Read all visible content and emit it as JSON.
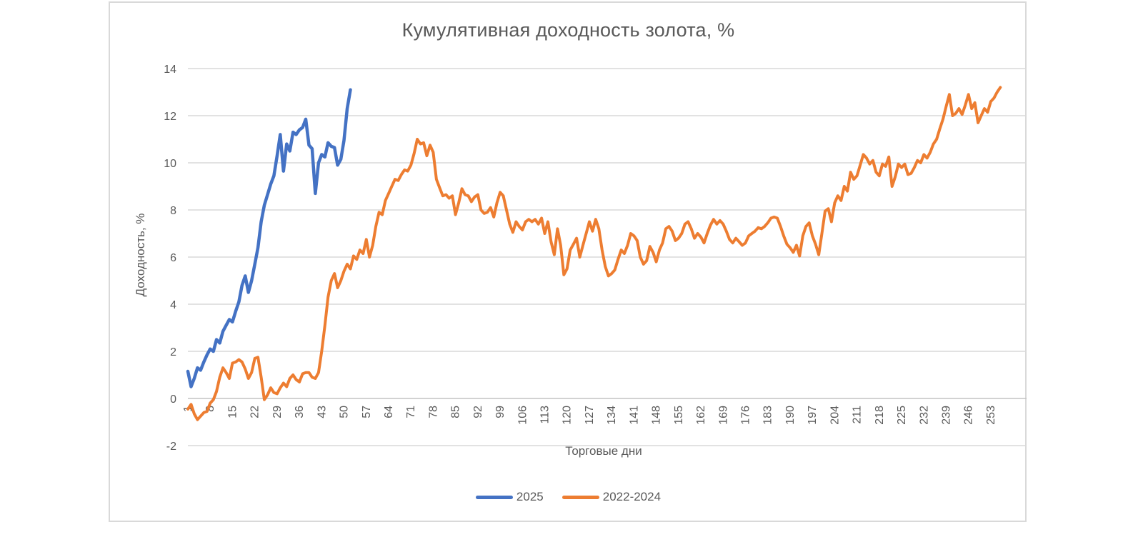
{
  "colors": {
    "text": "#595959",
    "grid": "#d9d9d9",
    "zero_axis": "#c3c3c3",
    "frame_border": "#d9d9d9",
    "series_2025": "#4472C4",
    "series_2022_2024": "#ED7D31"
  },
  "chart_data": {
    "type": "line",
    "title": "Кумулятивная доходность золота, %",
    "xlabel": "Торговые дни",
    "ylabel": "Доходность, %",
    "ylim": [
      -2,
      14
    ],
    "yticks": [
      14,
      12,
      10,
      8,
      6,
      4,
      2,
      0,
      -2
    ],
    "xticks": [
      1,
      8,
      15,
      22,
      29,
      36,
      43,
      50,
      57,
      64,
      71,
      78,
      85,
      92,
      99,
      106,
      113,
      120,
      127,
      134,
      141,
      148,
      155,
      162,
      169,
      176,
      183,
      190,
      197,
      204,
      211,
      218,
      225,
      232,
      239,
      246,
      253
    ],
    "x_start_day": 1,
    "grid": "horizontal",
    "legend_position": "bottom",
    "series": [
      {
        "name": "2025",
        "color": "#4472C4",
        "values": [
          1.15,
          0.5,
          0.85,
          1.3,
          1.2,
          1.55,
          1.85,
          2.1,
          2.0,
          2.5,
          2.35,
          2.85,
          3.1,
          3.35,
          3.25,
          3.7,
          4.1,
          4.8,
          5.2,
          4.5,
          5.0,
          5.7,
          6.4,
          7.5,
          8.2,
          8.65,
          9.1,
          9.45,
          10.3,
          11.2,
          9.65,
          10.8,
          10.5,
          11.3,
          11.2,
          11.4,
          11.5,
          11.85,
          10.75,
          10.6,
          8.7,
          10.0,
          10.35,
          10.25,
          10.85,
          10.7,
          10.65,
          9.9,
          10.15,
          10.95,
          12.3,
          13.1
        ]
      },
      {
        "name": "2022-2024",
        "color": "#ED7D31",
        "values": [
          -0.45,
          -0.25,
          -0.65,
          -0.9,
          -0.75,
          -0.6,
          -0.55,
          -0.2,
          -0.05,
          0.3,
          0.9,
          1.3,
          1.1,
          0.85,
          1.5,
          1.55,
          1.65,
          1.55,
          1.25,
          0.85,
          1.1,
          1.7,
          1.75,
          0.9,
          -0.05,
          0.15,
          0.45,
          0.25,
          0.2,
          0.45,
          0.65,
          0.5,
          0.85,
          1.0,
          0.8,
          0.7,
          1.05,
          1.1,
          1.1,
          0.9,
          0.85,
          1.1,
          2.0,
          3.1,
          4.3,
          5.0,
          5.3,
          4.7,
          5.0,
          5.4,
          5.7,
          5.5,
          6.05,
          5.9,
          6.3,
          6.15,
          6.75,
          6.0,
          6.5,
          7.3,
          7.9,
          7.8,
          8.4,
          8.7,
          9.0,
          9.3,
          9.25,
          9.5,
          9.7,
          9.65,
          9.9,
          10.4,
          11.0,
          10.8,
          10.85,
          10.3,
          10.75,
          10.45,
          9.3,
          8.95,
          8.6,
          8.65,
          8.5,
          8.6,
          7.8,
          8.3,
          8.9,
          8.65,
          8.6,
          8.35,
          8.55,
          8.65,
          8.0,
          7.85,
          7.9,
          8.1,
          7.7,
          8.3,
          8.75,
          8.6,
          8.0,
          7.4,
          7.05,
          7.5,
          7.3,
          7.15,
          7.5,
          7.6,
          7.5,
          7.6,
          7.4,
          7.65,
          7.0,
          7.5,
          6.65,
          6.1,
          7.2,
          6.5,
          5.25,
          5.5,
          6.3,
          6.55,
          6.8,
          6.0,
          6.5,
          7.0,
          7.5,
          7.1,
          7.6,
          7.2,
          6.3,
          5.6,
          5.2,
          5.3,
          5.45,
          5.9,
          6.3,
          6.15,
          6.5,
          7.0,
          6.9,
          6.7,
          6.0,
          5.7,
          5.85,
          6.45,
          6.2,
          5.8,
          6.3,
          6.6,
          7.2,
          7.3,
          7.1,
          6.7,
          6.8,
          7.0,
          7.4,
          7.5,
          7.2,
          6.8,
          7.0,
          6.85,
          6.6,
          7.0,
          7.35,
          7.6,
          7.4,
          7.55,
          7.4,
          7.1,
          6.75,
          6.6,
          6.8,
          6.65,
          6.5,
          6.6,
          6.9,
          7.0,
          7.1,
          7.25,
          7.2,
          7.3,
          7.45,
          7.65,
          7.7,
          7.65,
          7.3,
          6.9,
          6.55,
          6.4,
          6.2,
          6.5,
          6.05,
          6.9,
          7.3,
          7.45,
          6.9,
          6.55,
          6.1,
          7.0,
          7.95,
          8.05,
          7.5,
          8.3,
          8.6,
          8.4,
          9.0,
          8.8,
          9.6,
          9.3,
          9.45,
          9.9,
          10.35,
          10.2,
          9.95,
          10.1,
          9.6,
          9.45,
          9.95,
          9.85,
          10.25,
          9.0,
          9.4,
          9.95,
          9.8,
          9.95,
          9.5,
          9.55,
          9.8,
          10.1,
          10.0,
          10.35,
          10.2,
          10.45,
          10.8,
          11.0,
          11.45,
          11.85,
          12.4,
          12.9,
          12.0,
          12.1,
          12.3,
          12.05,
          12.45,
          12.9,
          12.3,
          12.55,
          11.7,
          12.0,
          12.3,
          12.15,
          12.6,
          12.75,
          13.0,
          13.2
        ]
      }
    ]
  }
}
